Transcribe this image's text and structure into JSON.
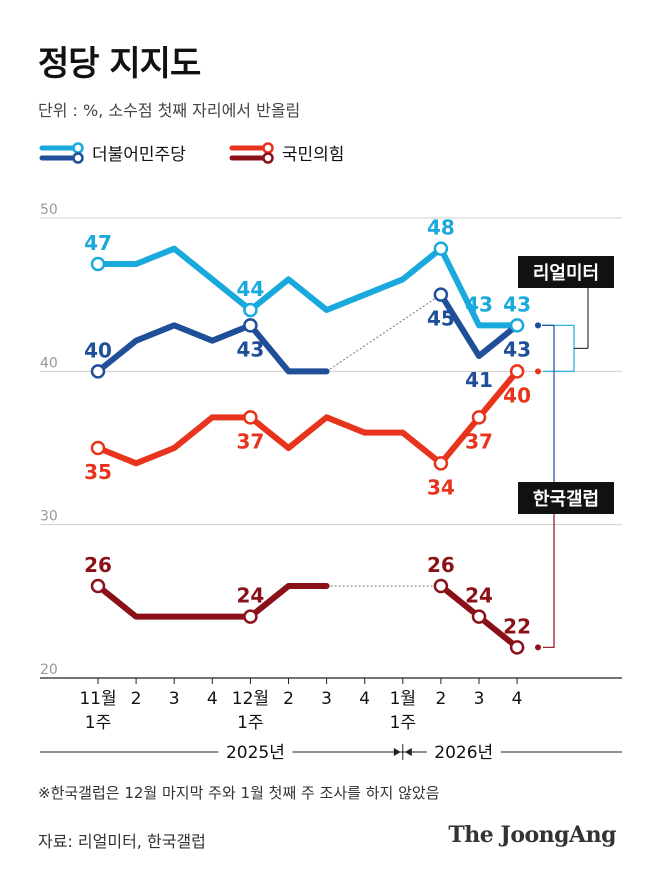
{
  "title": "정당 지지도",
  "unit_note": "단위 : %, 소수점 첫째 자리에서 반올림",
  "legend": [
    {
      "name": "더불어민주당",
      "color": "#1aa9dc",
      "color2": "#1f4f99"
    },
    {
      "name": "국민의힘",
      "color": "#e8341c",
      "color2": "#8b1118"
    }
  ],
  "colors": {
    "dem_realmeter": "#1aa9dc",
    "dem_gallup": "#1f4f99",
    "ppp_realmeter": "#e8341c",
    "ppp_gallup": "#8b1118",
    "grid": "#cfcfcf",
    "line": "#111111"
  },
  "chart_data": {
    "type": "line",
    "ylim": [
      20,
      50
    ],
    "yticks": [
      20,
      30,
      40,
      50
    ],
    "x_labels": [
      {
        "top": "11월",
        "bottom": "1주"
      },
      {
        "top": "2",
        "bottom": ""
      },
      {
        "top": "3",
        "bottom": ""
      },
      {
        "top": "4",
        "bottom": ""
      },
      {
        "top": "12월",
        "bottom": "1주"
      },
      {
        "top": "2",
        "bottom": ""
      },
      {
        "top": "3",
        "bottom": ""
      },
      {
        "top": "4",
        "bottom": ""
      },
      {
        "top": "1월",
        "bottom": "1주"
      },
      {
        "top": "2",
        "bottom": ""
      },
      {
        "top": "3",
        "bottom": ""
      },
      {
        "top": "4",
        "bottom": ""
      }
    ],
    "years": [
      {
        "label": "2025년",
        "from": 0,
        "to": 8
      },
      {
        "label": "2026년",
        "from": 8,
        "to": 11
      }
    ],
    "series": [
      {
        "key": "dem_realmeter",
        "color": "#1aa9dc",
        "values": [
          47,
          47,
          48,
          46,
          44,
          46,
          44,
          45,
          46,
          48,
          43,
          43
        ],
        "labels": [
          {
            "i": 0,
            "text": "47",
            "pos": "above"
          },
          {
            "i": 4,
            "text": "44",
            "pos": "above"
          },
          {
            "i": 9,
            "text": "48",
            "pos": "above"
          },
          {
            "i": 10,
            "text": "43",
            "pos": "above"
          },
          {
            "i": 11,
            "text": "43",
            "pos": "above"
          }
        ],
        "markers": [
          0,
          4,
          9,
          11
        ]
      },
      {
        "key": "dem_gallup",
        "color": "#1f4f99",
        "values": [
          40,
          42,
          43,
          42,
          43,
          40,
          40,
          null,
          null,
          45,
          41,
          43
        ],
        "dotted_gap": [
          6,
          9
        ],
        "labels": [
          {
            "i": 0,
            "text": "40",
            "pos": "above"
          },
          {
            "i": 4,
            "text": "43",
            "pos": "below"
          },
          {
            "i": 9,
            "text": "45",
            "pos": "below"
          },
          {
            "i": 10,
            "text": "41",
            "pos": "below"
          },
          {
            "i": 11,
            "text": "43",
            "pos": "below"
          }
        ],
        "markers": [
          0,
          4,
          9
        ]
      },
      {
        "key": "ppp_realmeter",
        "color": "#e8341c",
        "values": [
          35,
          34,
          35,
          37,
          37,
          35,
          37,
          36,
          36,
          34,
          37,
          40
        ],
        "labels": [
          {
            "i": 0,
            "text": "35",
            "pos": "below"
          },
          {
            "i": 4,
            "text": "37",
            "pos": "below"
          },
          {
            "i": 9,
            "text": "34",
            "pos": "below"
          },
          {
            "i": 10,
            "text": "37",
            "pos": "below"
          },
          {
            "i": 11,
            "text": "40",
            "pos": "below"
          }
        ],
        "markers": [
          0,
          4,
          9,
          10,
          11
        ]
      },
      {
        "key": "ppp_gallup",
        "color": "#8b1118",
        "values": [
          26,
          24,
          24,
          24,
          24,
          26,
          26,
          null,
          null,
          26,
          24,
          22
        ],
        "dotted_gap": [
          6,
          9
        ],
        "labels": [
          {
            "i": 0,
            "text": "26",
            "pos": "above"
          },
          {
            "i": 4,
            "text": "24",
            "pos": "above"
          },
          {
            "i": 9,
            "text": "26",
            "pos": "above"
          },
          {
            "i": 10,
            "text": "24",
            "pos": "above"
          },
          {
            "i": 11,
            "text": "22",
            "pos": "above"
          }
        ],
        "markers": [
          0,
          4,
          9,
          10,
          11
        ]
      }
    ],
    "pollsters": [
      {
        "label": "리얼미터",
        "series": [
          "dem_realmeter",
          "ppp_realmeter"
        ]
      },
      {
        "label": "한국갤럽",
        "series": [
          "dem_gallup",
          "ppp_gallup"
        ]
      }
    ]
  },
  "footnote": "※한국갤럽은 12월 마지막 주와 1월 첫째 주 조사를 하지 않았음",
  "source": "자료: 리얼미터, 한국갤럽",
  "brand": "The JoongAng"
}
